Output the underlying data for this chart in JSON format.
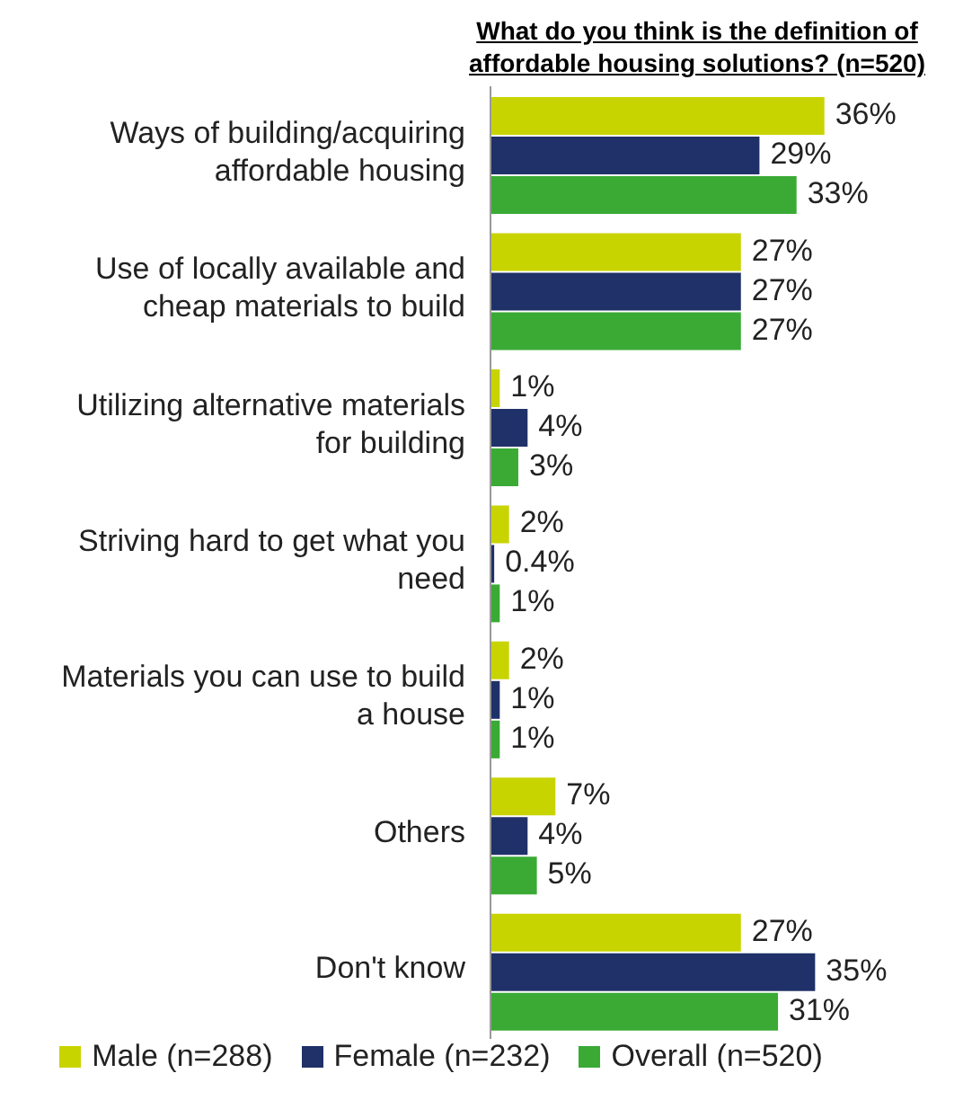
{
  "chart_data": {
    "type": "bar",
    "orientation": "horizontal",
    "title": "What do you think is the definition of affordable housing solutions? (n=520)",
    "categories": [
      "Ways of building/acquiring affordable housing",
      "Use of locally available and cheap materials to build",
      "Utilizing alternative materials for building",
      "Striving hard to get what you need",
      "Materials you can use to build a house",
      "Others",
      "Don't know"
    ],
    "series": [
      {
        "name": "Male (n=288)",
        "color": "#c8d400",
        "values": [
          36,
          27,
          1,
          2,
          2,
          7,
          27
        ],
        "value_labels": [
          "36%",
          "27%",
          "1%",
          "2%",
          "2%",
          "7%",
          "27%"
        ]
      },
      {
        "name": "Female (n=232)",
        "color": "#1f3168",
        "values": [
          29,
          27,
          4,
          0.4,
          1,
          4,
          35
        ],
        "value_labels": [
          "29%",
          "27%",
          "4%",
          "0.4%",
          "1%",
          "4%",
          "35%"
        ]
      },
      {
        "name": "Overall (n=520)",
        "color": "#3aaa35",
        "values": [
          33,
          27,
          3,
          1,
          1,
          5,
          31
        ],
        "value_labels": [
          "33%",
          "27%",
          "3%",
          "1%",
          "1%",
          "5%",
          "31%"
        ]
      }
    ],
    "legend": "bottom",
    "grid": false
  }
}
